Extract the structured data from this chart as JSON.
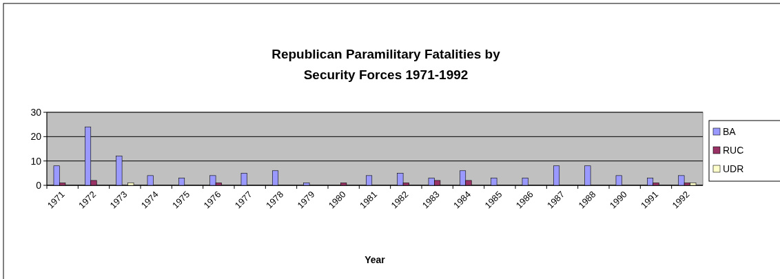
{
  "chart_data": {
    "type": "bar",
    "title": "Republican Paramilitary Fatalities by\nSecurity Forces 1971-1992",
    "xlabel": "Year",
    "categories": [
      "1971",
      "1972",
      "1973",
      "1974",
      "1975",
      "1976",
      "1977",
      "1978",
      "1979",
      "1980",
      "1981",
      "1982",
      "1983",
      "1984",
      "1985",
      "1986",
      "1987",
      "1988",
      "1990",
      "1991",
      "1992"
    ],
    "series": [
      {
        "name": "BA",
        "color": "#9999ff",
        "values": [
          8,
          24,
          12,
          4,
          3,
          4,
          5,
          6,
          1,
          0,
          4,
          5,
          3,
          6,
          3,
          3,
          8,
          8,
          4,
          3,
          4
        ]
      },
      {
        "name": "RUC",
        "color": "#993366",
        "values": [
          1,
          2,
          0,
          0,
          0,
          1,
          0,
          0,
          0,
          1,
          0,
          1,
          2,
          2,
          0,
          0,
          0,
          0,
          0,
          1,
          1
        ]
      },
      {
        "name": "UDR",
        "color": "#ffffcc",
        "values": [
          0,
          0,
          1,
          0,
          0,
          0,
          0,
          0,
          0,
          0,
          0,
          0,
          0,
          0,
          0,
          0,
          0,
          0,
          0,
          0,
          1
        ]
      }
    ],
    "ylim": [
      0,
      30
    ],
    "yticks": [
      0,
      10,
      20,
      30
    ],
    "grid": "y",
    "legend": "right"
  }
}
